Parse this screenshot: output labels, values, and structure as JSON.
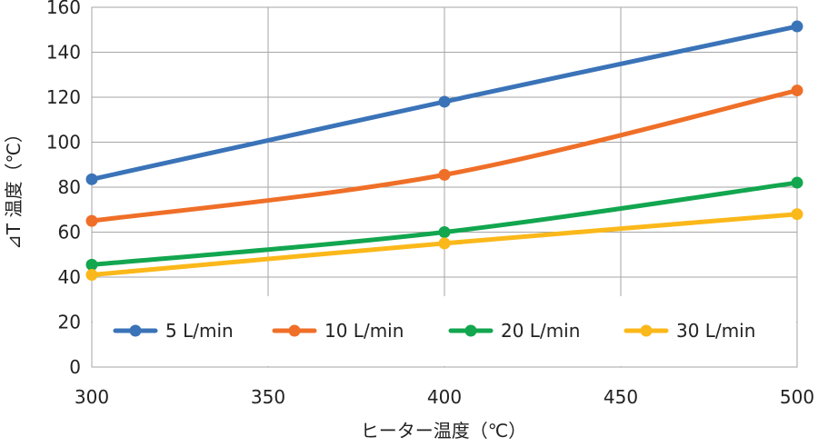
{
  "chart_data": {
    "type": "line",
    "xlabel": "ヒーター温度（℃）",
    "ylabel": "⊿T 温度（℃）",
    "xlim": [
      300,
      500
    ],
    "ylim": [
      0,
      160
    ],
    "x_ticks": [
      300,
      350,
      400,
      450,
      500
    ],
    "y_ticks": [
      0,
      20,
      40,
      60,
      80,
      100,
      120,
      140,
      160
    ],
    "x": [
      300,
      400,
      500
    ],
    "grid": true,
    "legend_position": "bottom-inside",
    "series": [
      {
        "name": "5 L/min",
        "color": "#3a73b8",
        "values": [
          83.5,
          118,
          151.5
        ]
      },
      {
        "name": "10 L/min",
        "color": "#ef6f28",
        "values": [
          65,
          85.5,
          123
        ]
      },
      {
        "name": "20 L/min",
        "color": "#12a64f",
        "values": [
          45.5,
          60,
          82
        ]
      },
      {
        "name": "30 L/min",
        "color": "#fbb81a",
        "values": [
          41,
          55,
          68
        ]
      }
    ]
  }
}
